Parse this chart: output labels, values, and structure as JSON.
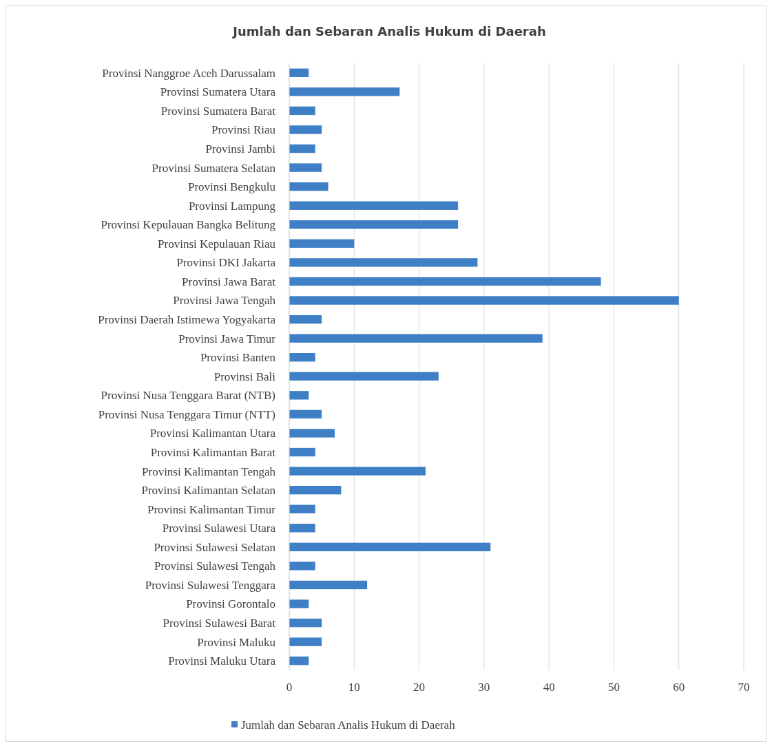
{
  "chart_data": {
    "type": "bar",
    "orientation": "horizontal",
    "title": "Jumlah dan Sebaran Analis Hukum di Daerah",
    "categories": [
      "Provinsi Nanggroe Aceh Darussalam",
      "Provinsi Sumatera Utara",
      "Provinsi Sumatera Barat",
      "Provinsi Riau",
      "Provinsi Jambi",
      "Provinsi Sumatera Selatan",
      "Provinsi Bengkulu",
      "Provinsi Lampung",
      "Provinsi Kepulauan Bangka Belitung",
      "Provinsi Kepulauan Riau",
      "Provinsi DKI Jakarta",
      "Provinsi Jawa Barat",
      "Provinsi Jawa Tengah",
      "Provinsi Daerah Istimewa Yogyakarta",
      "Provinsi Jawa Timur",
      "Provinsi Banten",
      "Provinsi Bali",
      "Provinsi Nusa Tenggara Barat (NTB)",
      "Provinsi Nusa Tenggara Timur (NTT)",
      "Provinsi Kalimantan Utara",
      "Provinsi Kalimantan Barat",
      "Provinsi Kalimantan Tengah",
      "Provinsi Kalimantan Selatan",
      "Provinsi Kalimantan Timur",
      "Provinsi Sulawesi Utara",
      "Provinsi Sulawesi Selatan",
      "Provinsi Sulawesi Tengah",
      "Provinsi Sulawesi Tenggara",
      "Provinsi Gorontalo",
      "Provinsi Sulawesi Barat",
      "Provinsi Maluku",
      "Provinsi Maluku Utara"
    ],
    "series": [
      {
        "name": "Jumlah dan Sebaran Analis Hukum di Daerah",
        "color": "#3f7fc6",
        "values": [
          3,
          17,
          4,
          5,
          4,
          5,
          6,
          26,
          26,
          10,
          29,
          48,
          60,
          5,
          39,
          4,
          23,
          3,
          5,
          7,
          4,
          21,
          8,
          4,
          4,
          31,
          4,
          12,
          3,
          5,
          5,
          3
        ]
      }
    ],
    "xlim": [
      0,
      70
    ],
    "xticks": [
      0,
      10,
      20,
      30,
      40,
      50,
      60,
      70
    ],
    "grid": "x",
    "legend": "bottom"
  }
}
